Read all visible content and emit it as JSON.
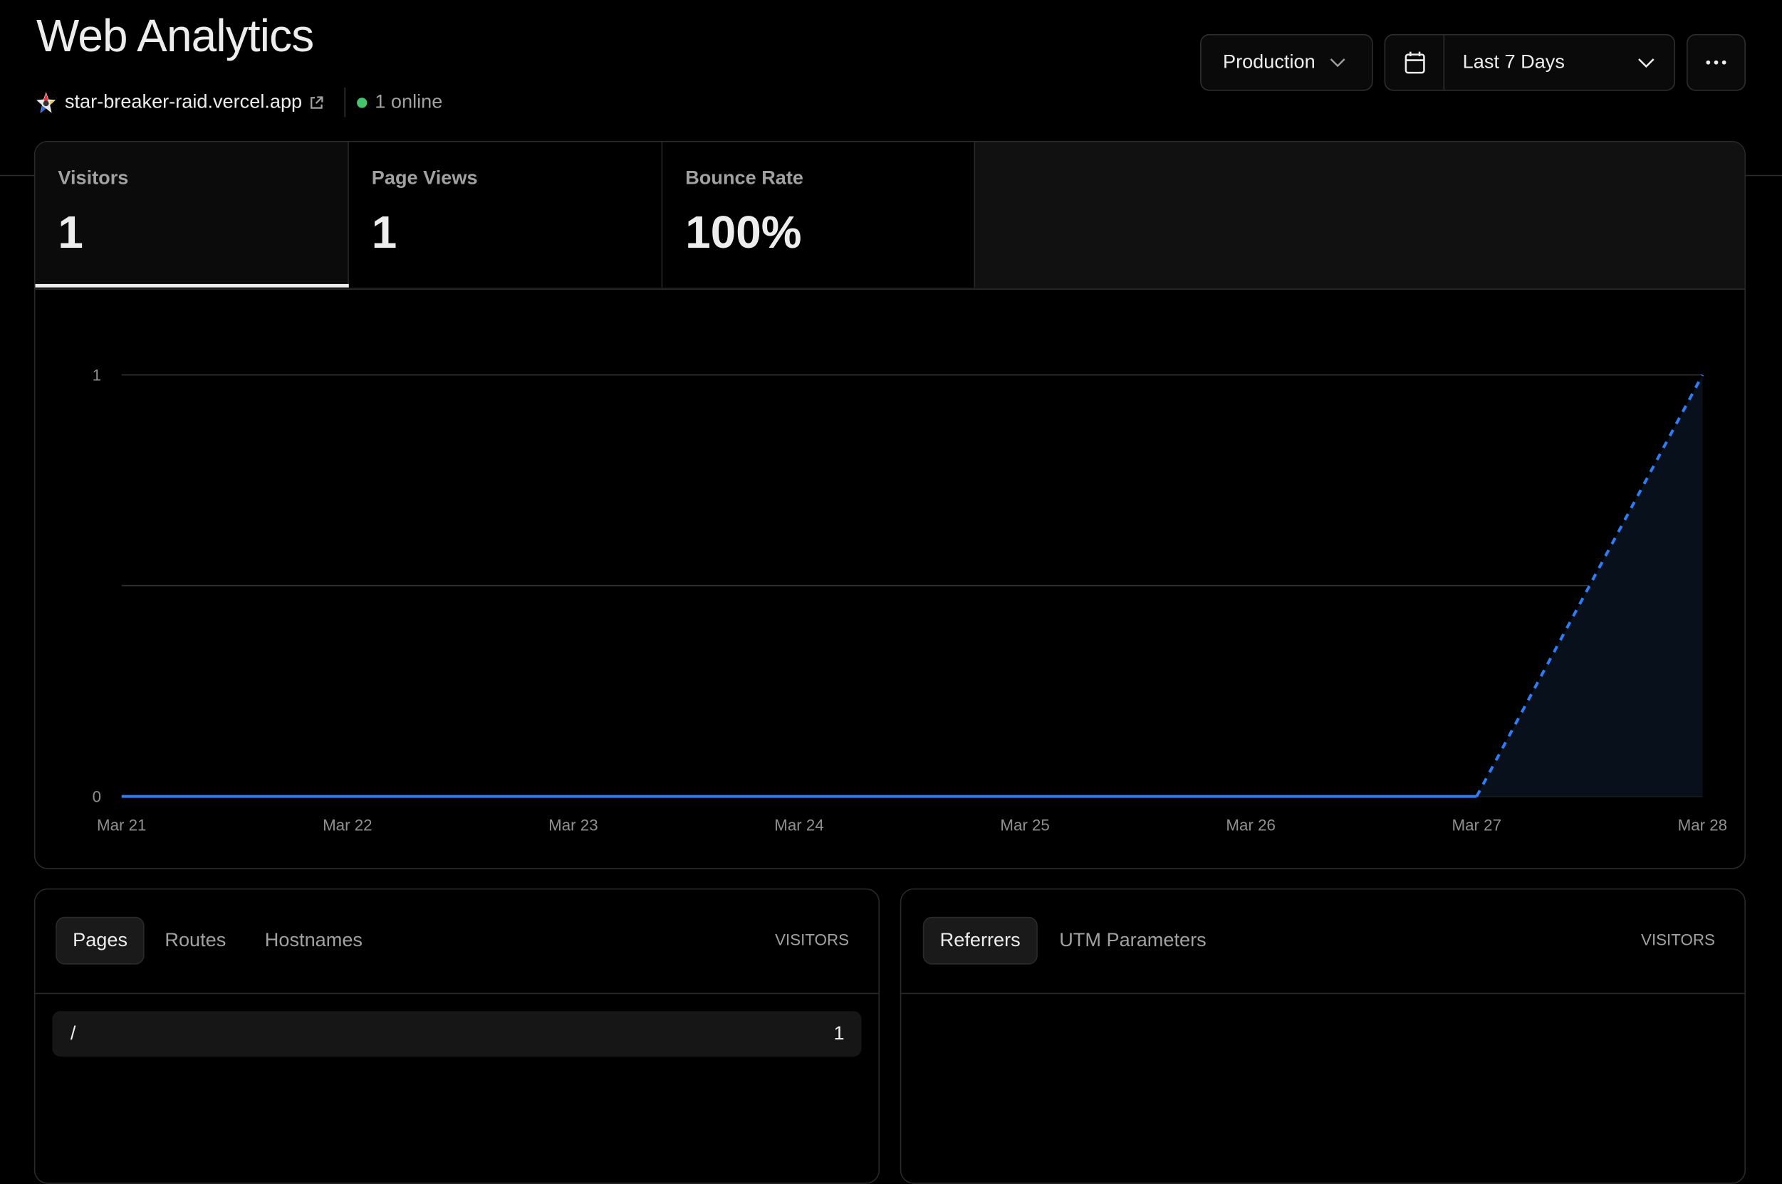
{
  "header": {
    "title": "Web Analytics",
    "site": "star-breaker-raid.vercel.app",
    "online": "1 online",
    "online_color": "#45c46c",
    "environment": "Production",
    "date_range": "Last 7 Days",
    "icons": [
      "star-logo-icon",
      "external-link-icon",
      "chevron-down-icon",
      "calendar-icon",
      "more-icon"
    ]
  },
  "metrics": [
    {
      "label": "Visitors",
      "value": "1",
      "active": true
    },
    {
      "label": "Page Views",
      "value": "1",
      "active": false
    },
    {
      "label": "Bounce Rate",
      "value": "100%",
      "active": false
    }
  ],
  "chart_data": {
    "type": "area",
    "x": [
      "Mar 21",
      "Mar 22",
      "Mar 23",
      "Mar 24",
      "Mar 25",
      "Mar 26",
      "Mar 27",
      "Mar 28"
    ],
    "values": [
      0,
      0,
      0,
      0,
      0,
      0,
      0,
      1
    ],
    "yticks": [
      "0",
      "1"
    ],
    "ylim": [
      0,
      1
    ],
    "grid": true,
    "line_color": "#2f7cf6",
    "last_segment_dashed": true
  },
  "pages_panel": {
    "tabs": [
      "Pages",
      "Routes",
      "Hostnames"
    ],
    "active_tab": "Pages",
    "column": "VISITORS",
    "rows": [
      {
        "path": "/",
        "visitors": "1"
      }
    ]
  },
  "referrers_panel": {
    "tabs": [
      "Referrers",
      "UTM Parameters"
    ],
    "active_tab": "Referrers",
    "column": "VISITORS",
    "rows": []
  }
}
